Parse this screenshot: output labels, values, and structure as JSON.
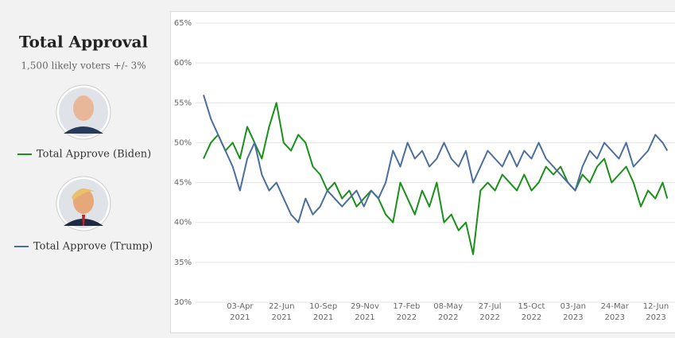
{
  "chart_data": {
    "type": "line",
    "title": "Total Approval",
    "subtitle": "1,500 likely voters +/- 3%",
    "x": [
      "2021-01-23",
      "2021-02-06",
      "2021-02-20",
      "2021-03-06",
      "2021-03-20",
      "2021-04-03",
      "2021-04-17",
      "2021-05-01",
      "2021-05-15",
      "2021-05-29",
      "2021-06-12",
      "2021-06-26",
      "2021-07-10",
      "2021-07-24",
      "2021-08-07",
      "2021-08-21",
      "2021-09-04",
      "2021-09-18",
      "2021-10-02",
      "2021-10-16",
      "2021-10-30",
      "2021-11-13",
      "2021-11-27",
      "2021-12-11",
      "2021-12-25",
      "2022-01-08",
      "2022-01-22",
      "2022-02-05",
      "2022-02-19",
      "2022-03-05",
      "2022-03-19",
      "2022-04-02",
      "2022-04-16",
      "2022-04-30",
      "2022-05-14",
      "2022-05-28",
      "2022-06-11",
      "2022-06-25",
      "2022-07-09",
      "2022-07-23",
      "2022-08-06",
      "2022-08-20",
      "2022-09-03",
      "2022-09-17",
      "2022-10-01",
      "2022-10-15",
      "2022-10-29",
      "2022-11-12",
      "2022-11-26",
      "2022-12-10",
      "2022-12-24",
      "2023-01-07",
      "2023-01-21",
      "2023-02-04",
      "2023-02-18",
      "2023-03-04",
      "2023-03-18",
      "2023-04-01",
      "2023-04-15",
      "2023-04-29",
      "2023-05-13",
      "2023-05-27",
      "2023-06-10",
      "2023-06-24",
      "2023-07-03"
    ],
    "series": [
      {
        "name": "Total Approve (Biden)",
        "color": "#1a8f1a",
        "values": [
          48,
          50,
          51,
          49,
          50,
          48,
          52,
          50,
          48,
          52,
          55,
          50,
          49,
          51,
          50,
          47,
          46,
          44,
          45,
          43,
          44,
          42,
          43,
          44,
          43,
          41,
          40,
          45,
          43,
          41,
          44,
          42,
          45,
          40,
          41,
          39,
          40,
          36,
          44,
          45,
          44,
          46,
          45,
          44,
          46,
          44,
          45,
          47,
          46,
          47,
          45,
          44,
          46,
          45,
          47,
          48,
          45,
          46,
          47,
          45,
          42,
          44,
          43,
          45,
          43
        ]
      },
      {
        "name": "Total Approve (Trump)",
        "color": "#4a6e9e",
        "values": [
          56,
          53,
          51,
          49,
          47,
          44,
          48,
          50,
          46,
          44,
          45,
          43,
          41,
          40,
          43,
          41,
          42,
          44,
          43,
          42,
          43,
          44,
          42,
          44,
          43,
          45,
          49,
          47,
          50,
          48,
          49,
          47,
          48,
          50,
          48,
          47,
          49,
          45,
          47,
          49,
          48,
          47,
          49,
          47,
          49,
          48,
          50,
          48,
          47,
          46,
          45,
          44,
          47,
          49,
          48,
          50,
          49,
          48,
          50,
          47,
          48,
          49,
          51,
          50,
          49
        ]
      }
    ],
    "xlim": [
      "2021-01-23",
      "2023-07-04"
    ],
    "xticks": [
      {
        "value": "2021-04-03",
        "label": [
          "03-Apr",
          "2021"
        ]
      },
      {
        "value": "2021-06-22",
        "label": [
          "22-Jun",
          "2021"
        ]
      },
      {
        "value": "2021-09-10",
        "label": [
          "10-Sep",
          "2021"
        ]
      },
      {
        "value": "2021-11-29",
        "label": [
          "29-Nov",
          "2021"
        ]
      },
      {
        "value": "2022-02-17",
        "label": [
          "17-Feb",
          "2022"
        ]
      },
      {
        "value": "2022-05-08",
        "label": [
          "08-May",
          "2022"
        ]
      },
      {
        "value": "2022-07-27",
        "label": [
          "27-Jul",
          "2022"
        ]
      },
      {
        "value": "2022-10-15",
        "label": [
          "15-Oct",
          "2022"
        ]
      },
      {
        "value": "2023-01-03",
        "label": [
          "03-Jan",
          "2023"
        ]
      },
      {
        "value": "2023-03-24",
        "label": [
          "24-Mar",
          "2023"
        ]
      },
      {
        "value": "2023-06-12",
        "label": [
          "12-Jun",
          "2023"
        ]
      }
    ],
    "ylim": [
      30,
      65
    ],
    "yticks": [
      {
        "value": 30,
        "label": "30%"
      },
      {
        "value": 35,
        "label": "35%"
      },
      {
        "value": 40,
        "label": "40%"
      },
      {
        "value": 45,
        "label": "45%"
      },
      {
        "value": 50,
        "label": "50%"
      },
      {
        "value": 55,
        "label": "55%"
      },
      {
        "value": 60,
        "label": "60%"
      },
      {
        "value": 65,
        "label": "65%"
      }
    ],
    "grid": true
  }
}
